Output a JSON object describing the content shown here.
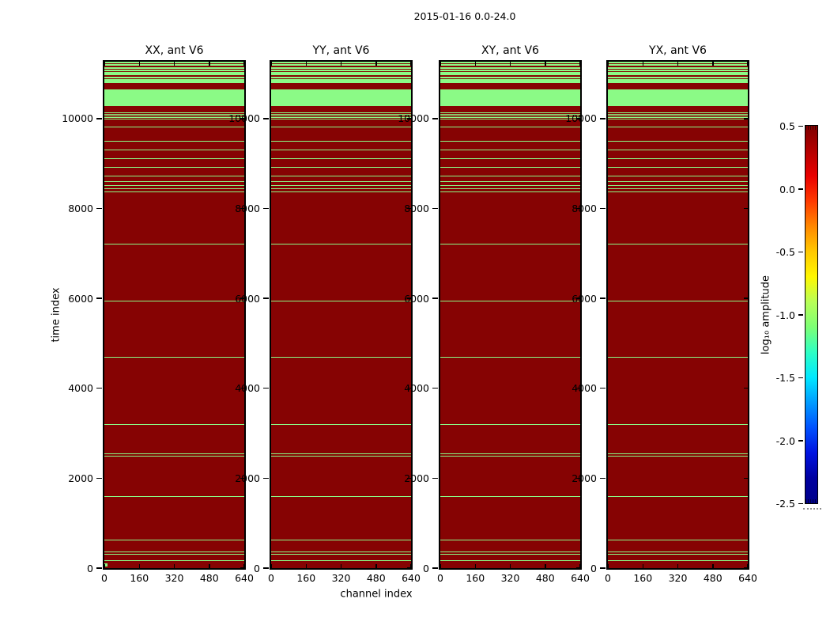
{
  "figure": {
    "suptitle": "2015-01-16 0.0-24.0"
  },
  "chart_data": {
    "type": "heatmap",
    "title": "2015-01-16 0.0-24.0",
    "xlabel": "channel index",
    "ylabel": "time index",
    "panels": [
      "XX, ant V6",
      "YY, ant V6",
      "XY, ant V6",
      "YX, ant V6"
    ],
    "x_ticks": [
      "0",
      "160",
      "320",
      "480",
      "640"
    ],
    "y_ticks": [
      "0",
      "2000",
      "4000",
      "6000",
      "8000",
      "10000"
    ],
    "x_range": [
      0,
      640
    ],
    "y_range": [
      0,
      11263
    ],
    "background": {
      "value_log10_amplitude": 0.5,
      "color": "#860303"
    },
    "stripes": {
      "value_log10_amplitude": -1.0,
      "color": "#8bfa86",
      "note": "horizontal flagged-time bands spanning all channels, identical in all four panels",
      "time_ranges": [
        [
          11230,
          11263
        ],
        [
          11175,
          11210
        ],
        [
          11105,
          11140
        ],
        [
          11050,
          11085
        ],
        [
          11005,
          11035
        ],
        [
          10965,
          11000
        ],
        [
          10895,
          10930
        ],
        [
          10790,
          10875
        ],
        [
          10280,
          10645
        ],
        [
          10115,
          10130
        ],
        [
          10080,
          10095
        ],
        [
          10045,
          10060
        ],
        [
          10010,
          10025
        ],
        [
          9975,
          9990
        ],
        [
          9800,
          9815
        ],
        [
          9485,
          9505
        ],
        [
          9300,
          9315
        ],
        [
          9105,
          9120
        ],
        [
          8900,
          8915
        ],
        [
          8710,
          8725
        ],
        [
          8590,
          8605
        ],
        [
          8510,
          8525
        ],
        [
          8435,
          8450
        ],
        [
          8355,
          8370
        ],
        [
          7205,
          7220
        ],
        [
          5925,
          5940
        ],
        [
          4690,
          4705
        ],
        [
          3185,
          3200
        ],
        [
          2530,
          2545
        ],
        [
          2490,
          2505
        ],
        [
          1585,
          1600
        ],
        [
          615,
          630
        ],
        [
          360,
          375
        ],
        [
          300,
          315
        ],
        [
          165,
          180
        ]
      ]
    },
    "panel1_low_marker": {
      "channel_range": [
        0,
        14
      ],
      "time_range": [
        40,
        110
      ],
      "color": "#8bfa86"
    },
    "colorbar": {
      "label": "log₁₀ amplitude",
      "tick_labels": [
        "0.5",
        "0.0",
        "-0.5",
        "-1.0",
        "-1.5",
        "-2.0",
        "-2.5"
      ],
      "tick_values": [
        0.5,
        0.0,
        -0.5,
        -1.0,
        -1.5,
        -2.0,
        -2.5
      ],
      "range": [
        -2.5,
        0.5
      ],
      "colormap": "jet",
      "gradient_top_to_bottom": [
        "#7f0000",
        "#b40000",
        "#e90000",
        "#ff3a00",
        "#ff8800",
        "#ffc800",
        "#fff700",
        "#b8ff57",
        "#7dff75",
        "#2effc4",
        "#00e8ff",
        "#009bff",
        "#0051ff",
        "#0013e0",
        "#0000a0",
        "#00008b"
      ]
    }
  }
}
